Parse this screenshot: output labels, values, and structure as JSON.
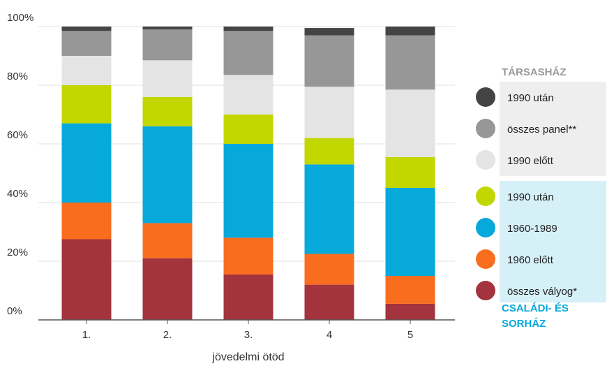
{
  "chart_data": {
    "type": "bar",
    "stacked": true,
    "categories": [
      "1.",
      "2.",
      "3.",
      "4",
      "5"
    ],
    "xlabel": "jövedelmi ötöd",
    "ylabel": "",
    "ylim": [
      0,
      100
    ],
    "yticks": [
      0,
      20,
      40,
      60,
      80,
      100
    ],
    "ytick_labels": [
      "0%",
      "20%",
      "40%",
      "60%",
      "80%",
      "100%"
    ],
    "grid": true,
    "legend_position": "right",
    "series": [
      {
        "name": "összes vályog*",
        "group": "CSALÁDI- ÉS SORHÁZ",
        "color": "#a3333d",
        "values": [
          27.5,
          21,
          15.5,
          12,
          5.5
        ]
      },
      {
        "name": "1960 előtt",
        "group": "CSALÁDI- ÉS SORHÁZ",
        "color": "#f96d1e",
        "values": [
          12.5,
          12,
          12.5,
          10.5,
          9.5
        ]
      },
      {
        "name": "1960-1989",
        "group": "CSALÁDI- ÉS SORHÁZ",
        "color": "#06a9da",
        "values": [
          27,
          33,
          32,
          30.5,
          30
        ]
      },
      {
        "name": "1990 után",
        "group": "CSALÁDI- ÉS SORHÁZ",
        "color": "#c2d600",
        "values": [
          13,
          10,
          10,
          9,
          10.5
        ]
      },
      {
        "name": "1990 előtt",
        "group": "TÁRSASHÁZ",
        "color": "#e4e4e4",
        "values": [
          10,
          12.5,
          13.5,
          17.5,
          23
        ]
      },
      {
        "name": "összes panel**",
        "group": "TÁRSASHÁZ",
        "color": "#979797",
        "values": [
          8.5,
          10.5,
          15,
          17.5,
          18.5
        ]
      },
      {
        "name": "1990 után",
        "group": "TÁRSASHÁZ",
        "color": "#444444",
        "values": [
          1.5,
          1,
          1.5,
          2.5,
          3
        ]
      }
    ],
    "legend": {
      "groups": [
        {
          "title": "TÁRSASHÁZ",
          "title_color": "#9a9a9a",
          "box_color": "#eeeeee",
          "items": [
            {
              "label": "1990 után",
              "color": "#444444"
            },
            {
              "label": "összes panel**",
              "color": "#979797"
            },
            {
              "label": "1990 előtt",
              "color": "#e4e4e4"
            }
          ]
        },
        {
          "title_lines": [
            "CSALÁDI- ÉS",
            "SORHÁZ"
          ],
          "title_color": "#06a9da",
          "box_color": "#d6f0f8",
          "items": [
            {
              "label": "1990 után",
              "color": "#c2d600"
            },
            {
              "label": "1960-1989",
              "color": "#06a9da"
            },
            {
              "label": "1960 előtt",
              "color": "#f96d1e"
            },
            {
              "label": "összes vályog*",
              "color": "#a3333d"
            }
          ]
        }
      ]
    }
  }
}
